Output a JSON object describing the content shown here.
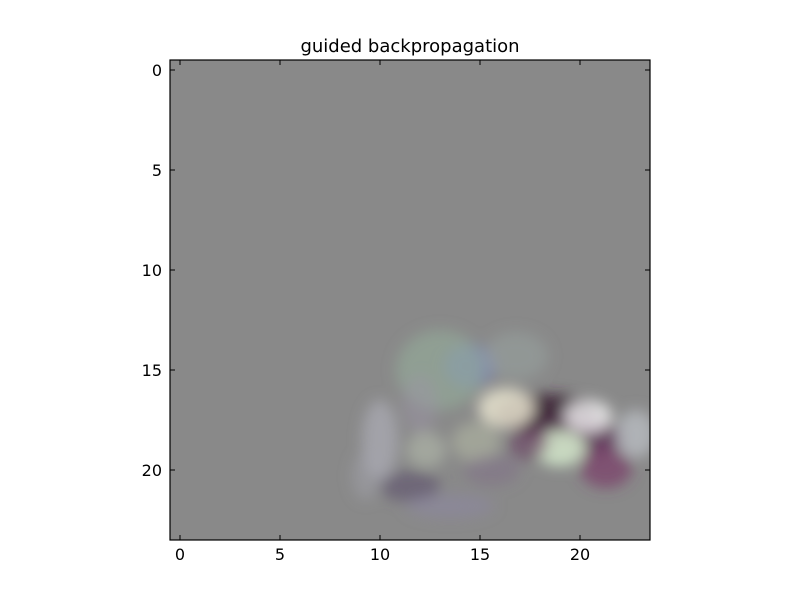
{
  "chart_data": {
    "type": "heatmap",
    "title": "guided backpropagation",
    "xlabel": "",
    "ylabel": "",
    "grid": false,
    "xlim": [
      -0.5,
      23.5
    ],
    "ylim": [
      23.5,
      -0.5
    ],
    "x_ticks": [
      0,
      5,
      10,
      15,
      20
    ],
    "y_ticks": [
      0,
      5,
      10,
      15,
      20
    ],
    "background_color": "#898989",
    "image_size": [
      24,
      24
    ],
    "regions": [
      {
        "x": 14.5,
        "y": 14.8,
        "rx": 1.3,
        "ry": 1.1,
        "color": "#7d86b3",
        "opacity": 0.8
      },
      {
        "x": 13.0,
        "y": 15.0,
        "rx": 2.2,
        "ry": 2.0,
        "color": "#95b09a",
        "opacity": 0.55
      },
      {
        "x": 16.8,
        "y": 14.3,
        "rx": 1.6,
        "ry": 1.2,
        "color": "#9aa6a2",
        "opacity": 0.5
      },
      {
        "x": 18.3,
        "y": 17.2,
        "rx": 2.6,
        "ry": 1.0,
        "color": "#3a1f34",
        "opacity": 0.85
      },
      {
        "x": 19.8,
        "y": 18.4,
        "rx": 2.3,
        "ry": 1.0,
        "color": "#5e2f55",
        "opacity": 0.75
      },
      {
        "x": 16.3,
        "y": 16.9,
        "rx": 1.4,
        "ry": 1.0,
        "color": "#e8e4cf",
        "opacity": 0.85
      },
      {
        "x": 20.4,
        "y": 17.3,
        "rx": 1.2,
        "ry": 0.8,
        "color": "#f4f4f4",
        "opacity": 0.8
      },
      {
        "x": 19.0,
        "y": 18.9,
        "rx": 1.3,
        "ry": 0.9,
        "color": "#d8f0d0",
        "opacity": 0.85
      },
      {
        "x": 21.3,
        "y": 19.9,
        "rx": 1.3,
        "ry": 1.0,
        "color": "#7a3a6a",
        "opacity": 0.7
      },
      {
        "x": 22.8,
        "y": 18.2,
        "rx": 1.0,
        "ry": 1.2,
        "color": "#c8cdd4",
        "opacity": 0.6
      },
      {
        "x": 17.4,
        "y": 18.7,
        "rx": 1.0,
        "ry": 0.8,
        "color": "#6b3f62",
        "opacity": 0.6
      },
      {
        "x": 14.8,
        "y": 18.6,
        "rx": 1.2,
        "ry": 1.0,
        "color": "#b9c0a8",
        "opacity": 0.5
      },
      {
        "x": 10.0,
        "y": 18.5,
        "rx": 0.9,
        "ry": 2.0,
        "color": "#b7b7c2",
        "opacity": 0.55
      },
      {
        "x": 11.5,
        "y": 20.8,
        "rx": 1.5,
        "ry": 0.8,
        "color": "#5a4a6a",
        "opacity": 0.55
      },
      {
        "x": 13.5,
        "y": 21.8,
        "rx": 2.2,
        "ry": 0.6,
        "color": "#8e88a8",
        "opacity": 0.45
      },
      {
        "x": 9.3,
        "y": 20.3,
        "rx": 0.7,
        "ry": 1.2,
        "color": "#a4a4b0",
        "opacity": 0.45
      },
      {
        "x": 12.0,
        "y": 16.7,
        "rx": 0.9,
        "ry": 1.5,
        "color": "#9c94a6",
        "opacity": 0.45
      },
      {
        "x": 12.3,
        "y": 19.0,
        "rx": 1.0,
        "ry": 0.9,
        "color": "#c2c9b5",
        "opacity": 0.45
      },
      {
        "x": 15.6,
        "y": 20.0,
        "rx": 1.4,
        "ry": 0.8,
        "color": "#7e6a86",
        "opacity": 0.4
      }
    ]
  }
}
